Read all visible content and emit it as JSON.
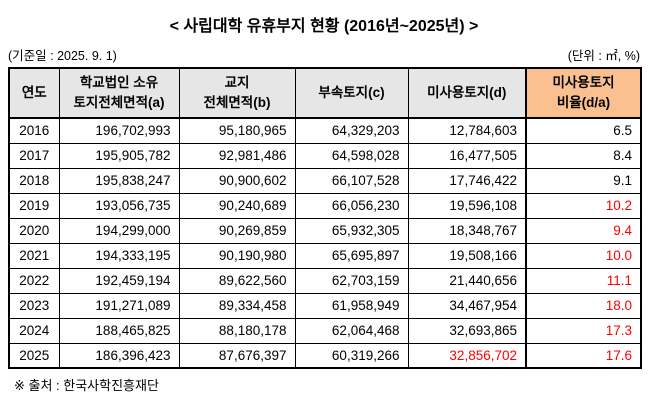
{
  "title": "<  사립대학 유휴부지 현황 (2016년~2025년)  >",
  "meta": {
    "base_date": "(기준일 :  2025. 9. 1)",
    "unit": "(단위 :  ㎡, %)"
  },
  "table": {
    "headers": {
      "col_year": "연도",
      "col_a_line1": "학교법인 소유",
      "col_a_line2": "토지전체면적(a)",
      "col_b_line1": "교지",
      "col_b_line2": "전체면적(b)",
      "col_c": "부속토지(c)",
      "col_d": "미사용토지(d)",
      "col_ratio_line1": "미사용토지",
      "col_ratio_line2": "비율(d/a)"
    },
    "rows": [
      {
        "year": "2016",
        "a": "196,702,993",
        "b": "95,180,965",
        "c": "64,329,203",
        "d": "12,784,603",
        "ratio": "6.5",
        "red_cells": []
      },
      {
        "year": "2017",
        "a": "195,905,782",
        "b": "92,981,486",
        "c": "64,598,028",
        "d": "16,477,505",
        "ratio": "8.4",
        "red_cells": []
      },
      {
        "year": "2018",
        "a": "195,838,247",
        "b": "90,900,602",
        "c": "66,107,528",
        "d": "17,746,422",
        "ratio": "9.1",
        "red_cells": []
      },
      {
        "year": "2019",
        "a": "193,056,735",
        "b": "90,240,689",
        "c": "66,056,230",
        "d": "19,596,108",
        "ratio": "10.2",
        "red_cells": [
          "ratio"
        ]
      },
      {
        "year": "2020",
        "a": "194,299,000",
        "b": "90,269,859",
        "c": "65,932,305",
        "d": "18,348,767",
        "ratio": "9.4",
        "red_cells": [
          "ratio"
        ]
      },
      {
        "year": "2021",
        "a": "194,333,195",
        "b": "90,190,980",
        "c": "65,695,897",
        "d": "19,508,166",
        "ratio": "10.0",
        "red_cells": [
          "ratio"
        ]
      },
      {
        "year": "2022",
        "a": "192,459,194",
        "b": "89,622,560",
        "c": "62,703,159",
        "d": "21,440,656",
        "ratio": "11.1",
        "red_cells": [
          "ratio"
        ]
      },
      {
        "year": "2023",
        "a": "191,271,089",
        "b": "89,334,458",
        "c": "61,958,949",
        "d": "34,467,954",
        "ratio": "18.0",
        "red_cells": [
          "ratio"
        ]
      },
      {
        "year": "2024",
        "a": "188,465,825",
        "b": "88,180,178",
        "c": "62,064,468",
        "d": "32,693,865",
        "ratio": "17.3",
        "red_cells": [
          "ratio"
        ]
      },
      {
        "year": "2025",
        "a": "186,396,423",
        "b": "87,676,397",
        "c": "60,319,266",
        "d": "32,856,702",
        "ratio": "17.6",
        "red_cells": [
          "d",
          "ratio"
        ]
      }
    ]
  },
  "footer": "※ 출처 :  한국사학진흥재단",
  "colors": {
    "highlight_header_bg": "#FAC090",
    "header_bg": "#E7E6E6",
    "alert_red": "#FF0000",
    "border": "#000000"
  }
}
